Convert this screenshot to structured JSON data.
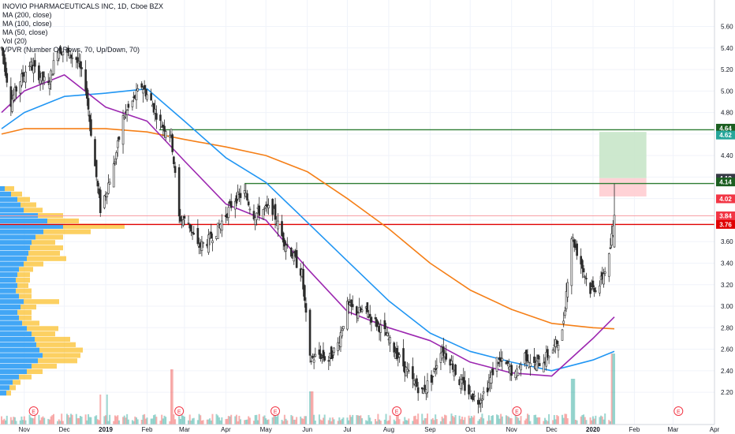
{
  "chart_data": {
    "type": "candlestick",
    "title": "INOVIO PHARMACEUTICALS INC, 1D, Cboe BZX",
    "legend": [
      "MA (200, close)",
      "MA (100, close)",
      "MA (50, close)",
      "Vol (20)",
      "VPVR (Number Of Rows, 70, Up/Down, 70)"
    ],
    "ylim": [
      2.12,
      5.67
    ],
    "y_ticks": [
      "5.60",
      "5.40",
      "5.20",
      "5.00",
      "4.80",
      "4.60",
      "4.40",
      "4.20",
      "4.00",
      "3.80",
      "3.60",
      "3.40",
      "3.20",
      "3.00",
      "2.80",
      "2.60",
      "2.40",
      "2.20"
    ],
    "x_ticks": [
      "Nov",
      "Dec",
      "2019",
      "Feb",
      "Mar",
      "Apr",
      "May",
      "Jun",
      "Jul",
      "Aug",
      "Sep",
      "Oct",
      "Nov",
      "Dec",
      "2020",
      "Feb",
      "Mar",
      "Apr"
    ],
    "price_labels": [
      {
        "value": 4.64,
        "text": "4.64",
        "color": "#1b5e20"
      },
      {
        "value": 4.62,
        "text": "4.62",
        "color": "#26a69a"
      },
      {
        "value": 4.19,
        "text": "4.19",
        "color": "#363a45"
      },
      {
        "value": 4.14,
        "text": "4.14",
        "color": "#1b5e20"
      },
      {
        "value": 4.02,
        "text": "4.02",
        "color": "#f23645"
      },
      {
        "value": 3.84,
        "text": "3.84",
        "color": "#f23645"
      },
      {
        "value": 3.76,
        "text": "3.76",
        "color": "#e00000"
      }
    ],
    "horizontal_lines": [
      {
        "value": 4.64,
        "color": "#2e7d32"
      },
      {
        "value": 4.14,
        "color": "#2e7d32"
      },
      {
        "value": 3.84,
        "color": "#f7a0a6"
      },
      {
        "value": 3.76,
        "color": "#e00000"
      }
    ],
    "position": {
      "entry": 4.19,
      "target": 4.62,
      "stop": 4.02
    },
    "event_markers": [
      "E",
      "E",
      "E",
      "E",
      "E",
      "E"
    ],
    "colors": {
      "up": "#26a69a",
      "down": "#ef5350",
      "candle_body_up": "#f4f4f4",
      "ma200": "#f57f17",
      "ma100": "#2196f3",
      "ma50": "#9c27b0",
      "vp_up": "#2196f3",
      "vp_down": "#fbc02d",
      "profit": "#c8e6c9",
      "loss": "#ffcdd2"
    },
    "price_path": [
      [
        "2018-10-15",
        5.4
      ],
      [
        "2018-10-22",
        4.9
      ],
      [
        "2018-10-29",
        5.1
      ],
      [
        "2018-11-05",
        5.25
      ],
      [
        "2018-11-19",
        5.05
      ],
      [
        "2018-11-26",
        5.4
      ],
      [
        "2018-12-03",
        5.35
      ],
      [
        "2018-12-10",
        5.3
      ],
      [
        "2018-12-17",
        5.05
      ],
      [
        "2018-12-24",
        4.3
      ],
      [
        "2018-12-28",
        3.9
      ],
      [
        "2019-01-07",
        4.3
      ],
      [
        "2019-01-14",
        4.75
      ],
      [
        "2019-01-21",
        4.9
      ],
      [
        "2019-01-28",
        5.05
      ],
      [
        "2019-02-04",
        4.9
      ],
      [
        "2019-02-11",
        4.7
      ],
      [
        "2019-02-19",
        4.6
      ],
      [
        "2019-02-25",
        3.82
      ],
      [
        "2019-03-04",
        3.78
      ],
      [
        "2019-03-11",
        3.55
      ],
      [
        "2019-03-18",
        3.6
      ],
      [
        "2019-03-25",
        3.7
      ],
      [
        "2019-04-01",
        3.85
      ],
      [
        "2019-04-08",
        4.0
      ],
      [
        "2019-04-15",
        4.05
      ],
      [
        "2019-04-22",
        3.85
      ],
      [
        "2019-04-29",
        3.9
      ],
      [
        "2019-05-06",
        3.9
      ],
      [
        "2019-05-13",
        3.65
      ],
      [
        "2019-05-20",
        3.5
      ],
      [
        "2019-05-28",
        3.3
      ],
      [
        "2019-06-03",
        2.5
      ],
      [
        "2019-06-10",
        2.55
      ],
      [
        "2019-06-17",
        2.5
      ],
      [
        "2019-06-24",
        2.65
      ],
      [
        "2019-07-01",
        3.0
      ],
      [
        "2019-07-08",
        2.95
      ],
      [
        "2019-07-15",
        2.95
      ],
      [
        "2019-07-22",
        2.85
      ],
      [
        "2019-07-29",
        2.75
      ],
      [
        "2019-08-05",
        2.6
      ],
      [
        "2019-08-12",
        2.45
      ],
      [
        "2019-08-19",
        2.3
      ],
      [
        "2019-08-26",
        2.2
      ],
      [
        "2019-09-03",
        2.35
      ],
      [
        "2019-09-09",
        2.6
      ],
      [
        "2019-09-16",
        2.5
      ],
      [
        "2019-09-23",
        2.3
      ],
      [
        "2019-09-30",
        2.2
      ],
      [
        "2019-10-07",
        2.12
      ],
      [
        "2019-10-14",
        2.25
      ],
      [
        "2019-10-21",
        2.5
      ],
      [
        "2019-10-28",
        2.45
      ],
      [
        "2019-11-04",
        2.35
      ],
      [
        "2019-11-11",
        2.55
      ],
      [
        "2019-11-18",
        2.45
      ],
      [
        "2019-11-25",
        2.5
      ],
      [
        "2019-12-02",
        2.6
      ],
      [
        "2019-12-09",
        2.75
      ],
      [
        "2019-12-16",
        3.65
      ],
      [
        "2019-12-23",
        3.4
      ],
      [
        "2019-12-30",
        3.15
      ],
      [
        "2020-01-06",
        3.2
      ],
      [
        "2020-01-13",
        3.45
      ],
      [
        "2020-01-17",
        3.84
      ]
    ],
    "ma200": [
      [
        "2018-10-15",
        4.6
      ],
      [
        "2018-11-01",
        4.65
      ],
      [
        "2018-12-01",
        4.65
      ],
      [
        "2019-01-01",
        4.65
      ],
      [
        "2019-02-01",
        4.62
      ],
      [
        "2019-03-01",
        4.55
      ],
      [
        "2019-04-01",
        4.48
      ],
      [
        "2019-05-01",
        4.4
      ],
      [
        "2019-06-01",
        4.25
      ],
      [
        "2019-07-01",
        4.0
      ],
      [
        "2019-08-01",
        3.72
      ],
      [
        "2019-09-01",
        3.4
      ],
      [
        "2019-10-01",
        3.15
      ],
      [
        "2019-11-01",
        2.97
      ],
      [
        "2019-12-01",
        2.84
      ],
      [
        "2020-01-01",
        2.8
      ],
      [
        "2020-01-17",
        2.79
      ]
    ],
    "ma100": [
      [
        "2018-10-15",
        4.65
      ],
      [
        "2018-11-01",
        4.8
      ],
      [
        "2018-12-01",
        4.95
      ],
      [
        "2019-01-01",
        4.98
      ],
      [
        "2019-02-01",
        5.02
      ],
      [
        "2019-03-01",
        4.72
      ],
      [
        "2019-04-01",
        4.38
      ],
      [
        "2019-05-01",
        4.15
      ],
      [
        "2019-06-01",
        3.78
      ],
      [
        "2019-07-01",
        3.42
      ],
      [
        "2019-08-01",
        3.05
      ],
      [
        "2019-09-01",
        2.75
      ],
      [
        "2019-10-01",
        2.58
      ],
      [
        "2019-11-01",
        2.48
      ],
      [
        "2019-12-01",
        2.4
      ],
      [
        "2020-01-01",
        2.5
      ],
      [
        "2020-01-17",
        2.58
      ]
    ],
    "ma50": [
      [
        "2018-10-15",
        4.8
      ],
      [
        "2018-11-01",
        5.0
      ],
      [
        "2018-12-01",
        5.15
      ],
      [
        "2019-01-01",
        4.85
      ],
      [
        "2019-02-01",
        4.72
      ],
      [
        "2019-03-01",
        4.35
      ],
      [
        "2019-04-01",
        3.95
      ],
      [
        "2019-05-01",
        3.8
      ],
      [
        "2019-06-01",
        3.35
      ],
      [
        "2019-07-01",
        2.95
      ],
      [
        "2019-08-01",
        2.8
      ],
      [
        "2019-09-01",
        2.68
      ],
      [
        "2019-10-01",
        2.48
      ],
      [
        "2019-11-01",
        2.38
      ],
      [
        "2019-12-01",
        2.35
      ],
      [
        "2020-01-01",
        2.7
      ],
      [
        "2020-01-17",
        2.9
      ]
    ],
    "volume_profile": [
      {
        "price": 4.09,
        "up": 6,
        "down": 12
      },
      {
        "price": 4.04,
        "up": 14,
        "down": 14
      },
      {
        "price": 3.99,
        "up": 22,
        "down": 16
      },
      {
        "price": 3.94,
        "up": 26,
        "down": 20
      },
      {
        "price": 3.89,
        "up": 30,
        "down": 24
      },
      {
        "price": 3.84,
        "up": 48,
        "down": 32
      },
      {
        "price": 3.79,
        "up": 60,
        "down": 40
      },
      {
        "price": 3.74,
        "up": 80,
        "down": 78
      },
      {
        "price": 3.69,
        "up": 55,
        "down": 60
      },
      {
        "price": 3.64,
        "up": 45,
        "down": 35
      },
      {
        "price": 3.59,
        "up": 40,
        "down": 30
      },
      {
        "price": 3.54,
        "up": 38,
        "down": 42
      },
      {
        "price": 3.49,
        "up": 36,
        "down": 40
      },
      {
        "price": 3.44,
        "up": 34,
        "down": 50
      },
      {
        "price": 3.39,
        "up": 30,
        "down": 25
      },
      {
        "price": 3.34,
        "up": 24,
        "down": 18
      },
      {
        "price": 3.29,
        "up": 22,
        "down": 16
      },
      {
        "price": 3.24,
        "up": 20,
        "down": 18
      },
      {
        "price": 3.19,
        "up": 22,
        "down": 14
      },
      {
        "price": 3.14,
        "up": 20,
        "down": 20
      },
      {
        "price": 3.09,
        "up": 24,
        "down": 16
      },
      {
        "price": 3.04,
        "up": 30,
        "down": 45
      },
      {
        "price": 2.99,
        "up": 26,
        "down": 20
      },
      {
        "price": 2.94,
        "up": 22,
        "down": 18
      },
      {
        "price": 2.89,
        "up": 24,
        "down": 16
      },
      {
        "price": 2.84,
        "up": 28,
        "down": 22
      },
      {
        "price": 2.79,
        "up": 34,
        "down": 40
      },
      {
        "price": 2.74,
        "up": 40,
        "down": 30
      },
      {
        "price": 2.69,
        "up": 44,
        "down": 45
      },
      {
        "price": 2.64,
        "up": 46,
        "down": 50
      },
      {
        "price": 2.59,
        "up": 50,
        "down": 55
      },
      {
        "price": 2.54,
        "up": 54,
        "down": 48
      },
      {
        "price": 2.49,
        "up": 48,
        "down": 50
      },
      {
        "price": 2.44,
        "up": 40,
        "down": 32
      },
      {
        "price": 2.39,
        "up": 34,
        "down": 20
      },
      {
        "price": 2.34,
        "up": 24,
        "down": 16
      },
      {
        "price": 2.29,
        "up": 16,
        "down": 10
      },
      {
        "price": 2.24,
        "up": 12,
        "down": 8
      },
      {
        "price": 2.19,
        "up": 8,
        "down": 6
      }
    ]
  }
}
